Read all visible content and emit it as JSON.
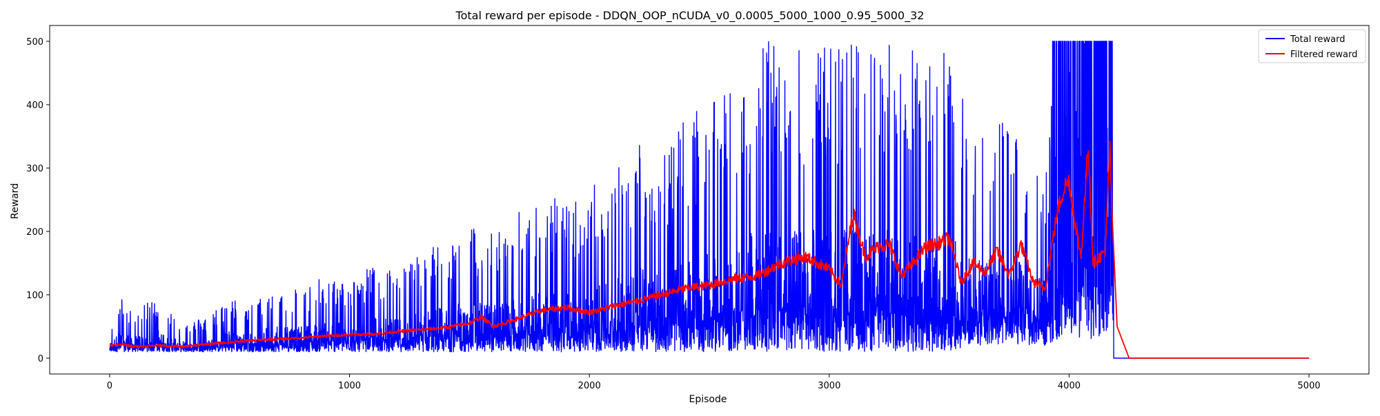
{
  "chart_data": {
    "type": "line",
    "title": "Total reward per episode - DDQN_OOP_nCUDA_v0_0.0005_5000_1000_0.95_5000_32",
    "xlabel": "Episode",
    "ylabel": "Reward",
    "xlim": [
      -250,
      5250
    ],
    "ylim": [
      -25,
      525
    ],
    "xticks": [
      0,
      1000,
      2000,
      3000,
      4000,
      5000
    ],
    "yticks": [
      0,
      100,
      200,
      300,
      400,
      500
    ],
    "legend": {
      "placement": "top-right"
    },
    "grid": false,
    "series": [
      {
        "name": "Total reward",
        "color": "#0000ff",
        "note": "noisy per-episode reward; envelope below gives min/max band and representative values by episode",
        "x": [
          0,
          50,
          100,
          200,
          300,
          400,
          500,
          600,
          700,
          800,
          900,
          1000,
          1100,
          1200,
          1300,
          1400,
          1500,
          1600,
          1700,
          1800,
          1900,
          2000,
          2100,
          2200,
          2300,
          2400,
          2500,
          2600,
          2700,
          2800,
          2900,
          3000,
          3100,
          3200,
          3300,
          3400,
          3500,
          3600,
          3700,
          3800,
          3900,
          3950,
          4000,
          4050,
          4100,
          4150,
          4180,
          4200,
          5000
        ],
        "peak": [
          45,
          95,
          70,
          100,
          55,
          65,
          95,
          85,
          120,
          110,
          130,
          120,
          150,
          140,
          170,
          190,
          210,
          200,
          230,
          260,
          250,
          270,
          300,
          350,
          330,
          380,
          400,
          430,
          500,
          500,
          500,
          500,
          500,
          500,
          500,
          500,
          500,
          350,
          380,
          360,
          310,
          500,
          500,
          500,
          500,
          500,
          500,
          0,
          0
        ],
        "low": [
          10,
          10,
          10,
          10,
          10,
          10,
          10,
          10,
          10,
          10,
          10,
          10,
          10,
          10,
          10,
          10,
          10,
          10,
          10,
          10,
          10,
          10,
          10,
          10,
          10,
          10,
          10,
          10,
          10,
          10,
          10,
          10,
          10,
          10,
          10,
          10,
          10,
          20,
          20,
          20,
          20,
          30,
          40,
          30,
          30,
          40,
          50,
          0,
          0
        ]
      },
      {
        "name": "Filtered reward",
        "color": "#ff0000",
        "x": [
          0,
          50,
          100,
          200,
          300,
          400,
          500,
          600,
          700,
          800,
          900,
          1000,
          1100,
          1200,
          1300,
          1400,
          1500,
          1550,
          1600,
          1700,
          1800,
          1900,
          2000,
          2100,
          2200,
          2300,
          2400,
          2500,
          2600,
          2700,
          2800,
          2900,
          3000,
          3050,
          3100,
          3150,
          3200,
          3250,
          3300,
          3350,
          3400,
          3450,
          3500,
          3550,
          3600,
          3650,
          3700,
          3750,
          3800,
          3850,
          3900,
          3950,
          3980,
          4000,
          4030,
          4050,
          4080,
          4100,
          4130,
          4150,
          4170,
          4180,
          4200,
          4250,
          4300,
          5000
        ],
        "y": [
          20,
          22,
          18,
          20,
          18,
          22,
          25,
          28,
          30,
          32,
          35,
          37,
          38,
          42,
          45,
          48,
          55,
          65,
          50,
          62,
          75,
          80,
          72,
          82,
          90,
          100,
          110,
          115,
          125,
          130,
          150,
          160,
          140,
          115,
          230,
          160,
          175,
          180,
          130,
          150,
          175,
          180,
          190,
          120,
          150,
          135,
          170,
          130,
          180,
          120,
          110,
          230,
          270,
          280,
          200,
          160,
          340,
          150,
          160,
          170,
          330,
          220,
          50,
          0,
          0,
          0
        ]
      }
    ]
  }
}
